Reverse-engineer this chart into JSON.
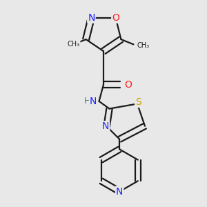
{
  "bg_color": "#e8e8e8",
  "atom_colors": {
    "N": "#2020ff",
    "O": "#ff2020",
    "S": "#c8a000",
    "H": "#408080",
    "C": "#1a1a1a"
  },
  "font_size": 9,
  "line_width": 1.6
}
